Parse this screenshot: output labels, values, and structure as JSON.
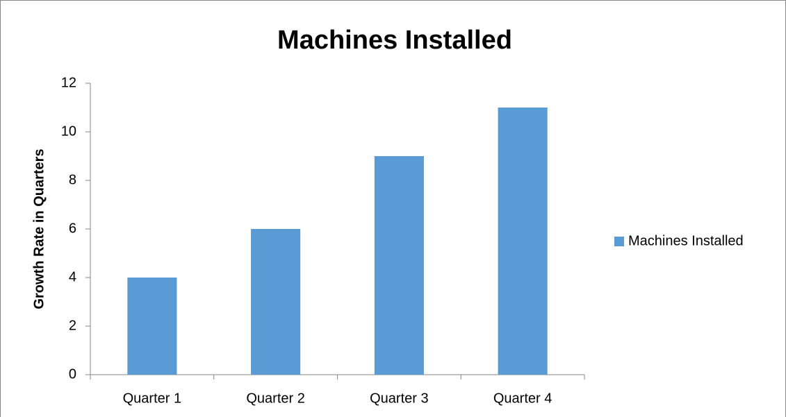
{
  "chart_data": {
    "type": "bar",
    "title": "Machines Installed",
    "ylabel": "Growth Rate in Quarters",
    "categories": [
      "Quarter 1",
      "Quarter 2",
      "Quarter 3",
      "Quarter 4"
    ],
    "series": [
      {
        "name": "Machines Installed",
        "color": "#5b9bd5",
        "values": [
          4,
          6,
          9,
          11
        ]
      }
    ],
    "ylim": [
      0,
      12
    ],
    "yticks": [
      0,
      2,
      4,
      6,
      8,
      10,
      12
    ],
    "grid": false,
    "legend": "right"
  }
}
